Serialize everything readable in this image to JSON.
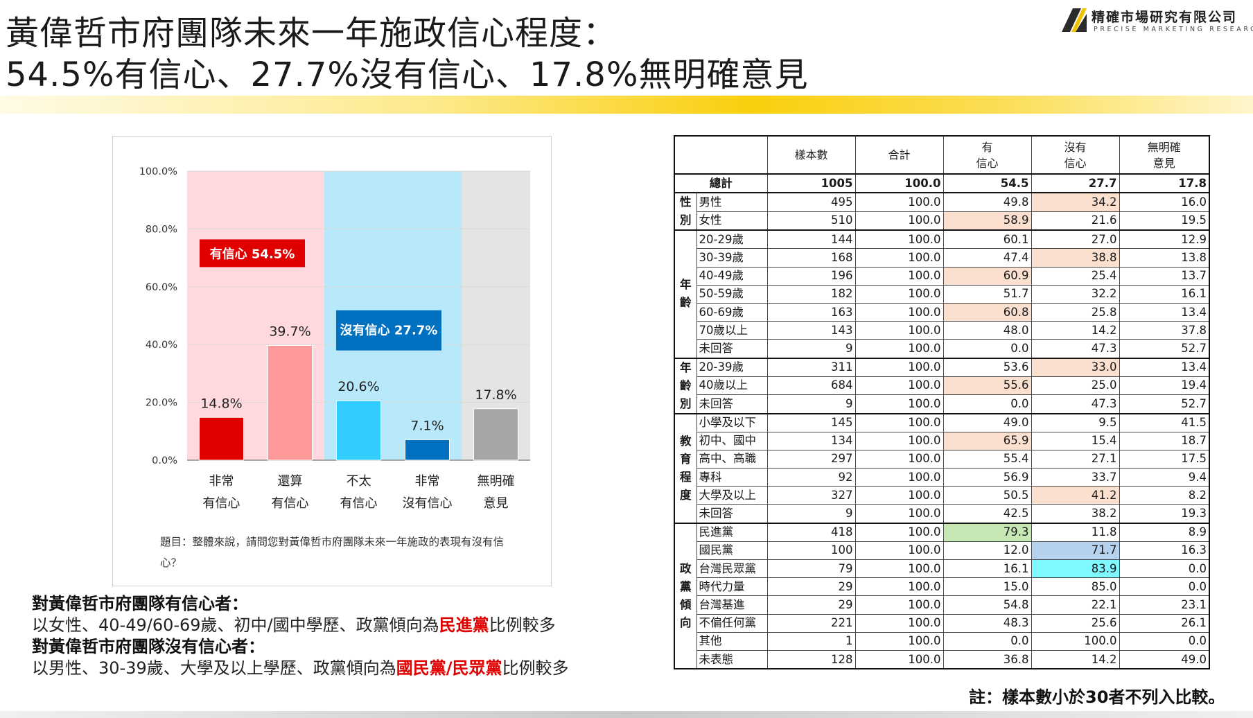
{
  "title": {
    "line1": "黃偉哲市府團隊未來一年施政信心程度：",
    "line2": "54.5%有信心、27.7%沒有信心、17.8%無明確意見"
  },
  "logo": {
    "name": "精確市場研究有限公司",
    "subtitle": "PRECISE MARKETING RESEARCH"
  },
  "colors": {
    "confident_strong": "#e00000",
    "confident_somewhat": "#ff9999",
    "not_confident_somewhat": "#33ccff",
    "not_confident_strong": "#0070c0",
    "no_opinion": "#a6a6a6",
    "zone_pink": "#ffd9de",
    "zone_blue": "#b7e9fb",
    "zone_gray": "#e4e4e4",
    "accent_yellow": "#f9cf0c"
  },
  "chart_data": {
    "type": "bar",
    "categories": [
      [
        "非常",
        "有信心"
      ],
      [
        "還算",
        "有信心"
      ],
      [
        "不太",
        "有信心"
      ],
      [
        "非常",
        "沒有信心"
      ],
      [
        "無明確",
        "意見"
      ]
    ],
    "values": [
      14.8,
      39.7,
      20.6,
      7.1,
      17.8
    ],
    "value_labels": [
      "14.8%",
      "39.7%",
      "20.6%",
      "7.1%",
      "17.8%"
    ],
    "yticks": [
      "0.0%",
      "20.0%",
      "40.0%",
      "60.0%",
      "80.0%",
      "100.0%"
    ],
    "ylim": [
      0,
      100
    ],
    "grid": true,
    "group_labels": [
      {
        "text": "有信心 54.5%",
        "value": 54.5
      },
      {
        "text": "沒有信心 27.7%",
        "value": 27.7
      }
    ],
    "question": "題目：整體來說，請問您對黃偉哲市府團隊未來一年施政的表現有沒有信心？"
  },
  "notes": {
    "confident_head": "對黃偉哲市府團隊有信心者：",
    "confident_pre": "以女性、40-49/60-69歲、初中/國中學歷、政黨傾向為",
    "confident_party": "民進黨",
    "confident_post": "比例較多",
    "not_confident_head": "對黃偉哲市府團隊沒有信心者：",
    "not_confident_pre": "以男性、30-39歲、大學及以上學歷、政黨傾向為",
    "not_confident_party": "國民黨/民眾黨",
    "not_confident_post": "比例較多"
  },
  "table": {
    "headers": [
      "樣本數",
      "合計",
      "有\n信心",
      "沒有\n信心",
      "無明確\n意見"
    ],
    "total": {
      "label": "總計",
      "cells": [
        "1005",
        "100.0",
        "54.5",
        "27.7",
        "17.8"
      ]
    },
    "groups": [
      {
        "label": "性別",
        "rows": [
          {
            "label": "男性",
            "cells": [
              "495",
              "100.0",
              "49.8",
              "34.2",
              "16.0"
            ],
            "hl": [
              null,
              null,
              null,
              "pink",
              null
            ]
          },
          {
            "label": "女性",
            "cells": [
              "510",
              "100.0",
              "58.9",
              "21.6",
              "19.5"
            ],
            "hl": [
              null,
              null,
              "pink",
              null,
              null
            ]
          }
        ]
      },
      {
        "label": "年齡",
        "rows": [
          {
            "label": "20-29歲",
            "cells": [
              "144",
              "100.0",
              "60.1",
              "27.0",
              "12.9"
            ],
            "hl": []
          },
          {
            "label": "30-39歲",
            "cells": [
              "168",
              "100.0",
              "47.4",
              "38.8",
              "13.8"
            ],
            "hl": [
              null,
              null,
              null,
              "pink",
              null
            ]
          },
          {
            "label": "40-49歲",
            "cells": [
              "196",
              "100.0",
              "60.9",
              "25.4",
              "13.7"
            ],
            "hl": [
              null,
              null,
              "pink",
              null,
              null
            ]
          },
          {
            "label": "50-59歲",
            "cells": [
              "182",
              "100.0",
              "51.7",
              "32.2",
              "16.1"
            ],
            "hl": []
          },
          {
            "label": "60-69歲",
            "cells": [
              "163",
              "100.0",
              "60.8",
              "25.8",
              "13.4"
            ],
            "hl": [
              null,
              null,
              "pink",
              null,
              null
            ]
          },
          {
            "label": "70歲以上",
            "cells": [
              "143",
              "100.0",
              "48.0",
              "14.2",
              "37.8"
            ],
            "hl": []
          },
          {
            "label": "未回答",
            "cells": [
              "9",
              "100.0",
              "0.0",
              "47.3",
              "52.7"
            ],
            "hl": []
          }
        ]
      },
      {
        "label": "年齡別",
        "rows": [
          {
            "label": "20-39歲",
            "cells": [
              "311",
              "100.0",
              "53.6",
              "33.0",
              "13.4"
            ],
            "hl": [
              null,
              null,
              null,
              "pink",
              null
            ]
          },
          {
            "label": "40歲以上",
            "cells": [
              "684",
              "100.0",
              "55.6",
              "25.0",
              "19.4"
            ],
            "hl": [
              null,
              null,
              "pink",
              null,
              null
            ]
          },
          {
            "label": "未回答",
            "cells": [
              "9",
              "100.0",
              "0.0",
              "47.3",
              "52.7"
            ],
            "hl": []
          }
        ]
      },
      {
        "label": "教育程度",
        "rows": [
          {
            "label": "小學及以下",
            "cells": [
              "145",
              "100.0",
              "49.0",
              "9.5",
              "41.5"
            ],
            "hl": []
          },
          {
            "label": "初中、國中",
            "cells": [
              "134",
              "100.0",
              "65.9",
              "15.4",
              "18.7"
            ],
            "hl": [
              null,
              null,
              "pink",
              null,
              null
            ]
          },
          {
            "label": "高中、高職",
            "cells": [
              "297",
              "100.0",
              "55.4",
              "27.1",
              "17.5"
            ],
            "hl": []
          },
          {
            "label": "專科",
            "cells": [
              "92",
              "100.0",
              "56.9",
              "33.7",
              "9.4"
            ],
            "hl": []
          },
          {
            "label": "大學及以上",
            "cells": [
              "327",
              "100.0",
              "50.5",
              "41.2",
              "8.2"
            ],
            "hl": [
              null,
              null,
              null,
              "pink",
              null
            ]
          },
          {
            "label": "未回答",
            "cells": [
              "9",
              "100.0",
              "42.5",
              "38.2",
              "19.3"
            ],
            "hl": []
          }
        ]
      },
      {
        "label": "政黨傾向",
        "rows": [
          {
            "label": "民進黨",
            "cells": [
              "418",
              "100.0",
              "79.3",
              "11.8",
              "8.9"
            ],
            "hl": [
              null,
              null,
              "green",
              null,
              null
            ]
          },
          {
            "label": "國民黨",
            "cells": [
              "100",
              "100.0",
              "12.0",
              "71.7",
              "16.3"
            ],
            "hl": [
              null,
              null,
              null,
              "blue",
              null
            ]
          },
          {
            "label": "台灣民眾黨",
            "cells": [
              "79",
              "100.0",
              "16.1",
              "83.9",
              "0.0"
            ],
            "hl": [
              null,
              null,
              null,
              "cyan",
              null
            ]
          },
          {
            "label": "時代力量",
            "cells": [
              "29",
              "100.0",
              "15.0",
              "85.0",
              "0.0"
            ],
            "hl": []
          },
          {
            "label": "台灣基進",
            "cells": [
              "29",
              "100.0",
              "54.8",
              "22.1",
              "23.1"
            ],
            "hl": []
          },
          {
            "label": "不偏任何黨",
            "cells": [
              "221",
              "100.0",
              "48.3",
              "25.6",
              "26.1"
            ],
            "hl": []
          },
          {
            "label": "其他",
            "cells": [
              "1",
              "100.0",
              "0.0",
              "100.0",
              "0.0"
            ],
            "hl": []
          },
          {
            "label": "未表態",
            "cells": [
              "128",
              "100.0",
              "36.8",
              "14.2",
              "49.0"
            ],
            "hl": []
          }
        ]
      }
    ]
  },
  "footnote": "註：樣本數小於30者不列入比較。"
}
